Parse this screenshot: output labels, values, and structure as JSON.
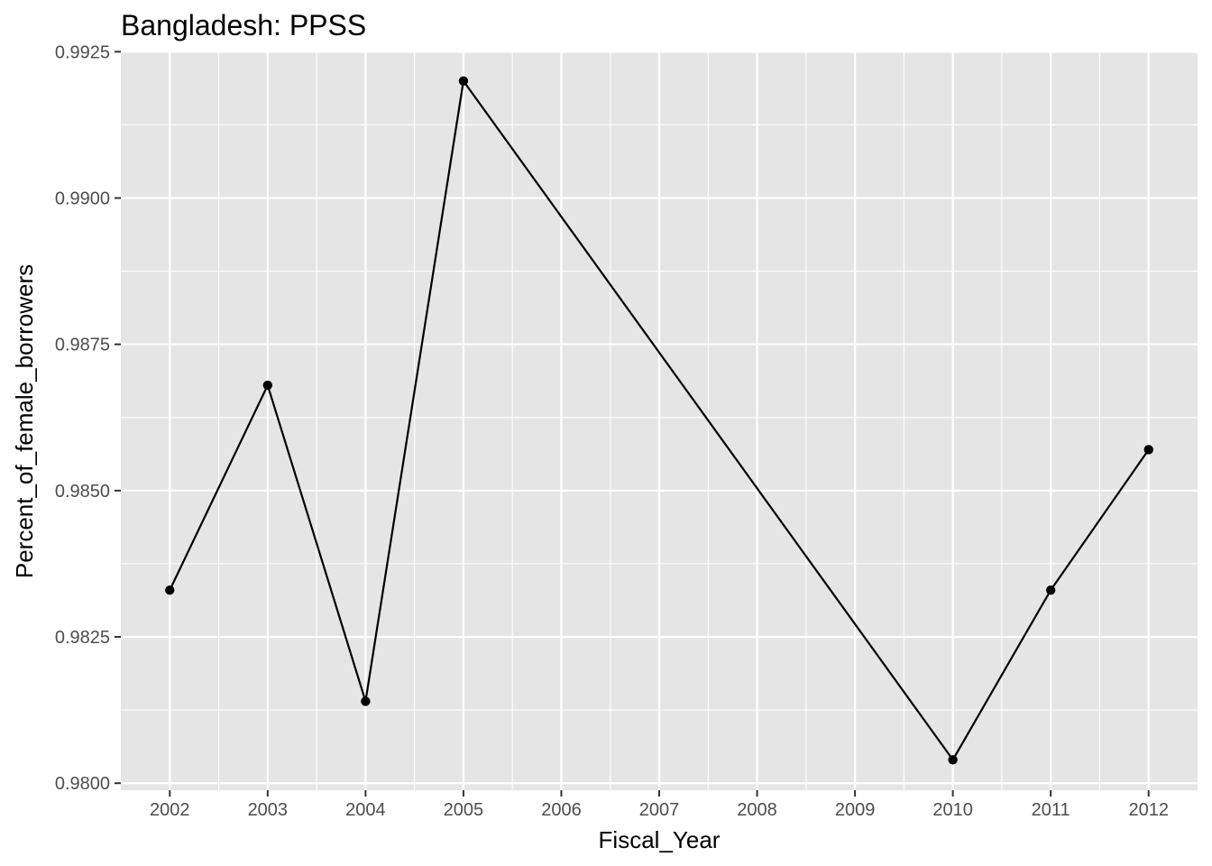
{
  "chart_data": {
    "type": "line",
    "title": "Bangladesh:  PPSS",
    "xlabel": "Fiscal_Year",
    "ylabel": "Percent_of_female_borrowers",
    "x_ticks": [
      "2002",
      "2003",
      "2004",
      "2005",
      "2006",
      "2007",
      "2008",
      "2009",
      "2010",
      "2011",
      "2012"
    ],
    "y_ticks": [
      "0.9800",
      "0.9825",
      "0.9850",
      "0.9875",
      "0.9900",
      "0.9925"
    ],
    "xlim": [
      2001.5,
      2012.5
    ],
    "ylim": [
      0.97988,
      0.99249
    ],
    "grid": true,
    "legend": "none",
    "series": [
      {
        "x": [
          2002,
          2003,
          2004,
          2005,
          2010,
          2011,
          2012
        ],
        "y": [
          0.9833,
          0.9868,
          0.9814,
          0.992,
          0.9804,
          0.9833,
          0.9857
        ]
      }
    ],
    "colors": {
      "panel": "#e5e5e5",
      "grid": "#ffffff",
      "line": "#000000",
      "tick_text": "#4d4d4d"
    }
  }
}
